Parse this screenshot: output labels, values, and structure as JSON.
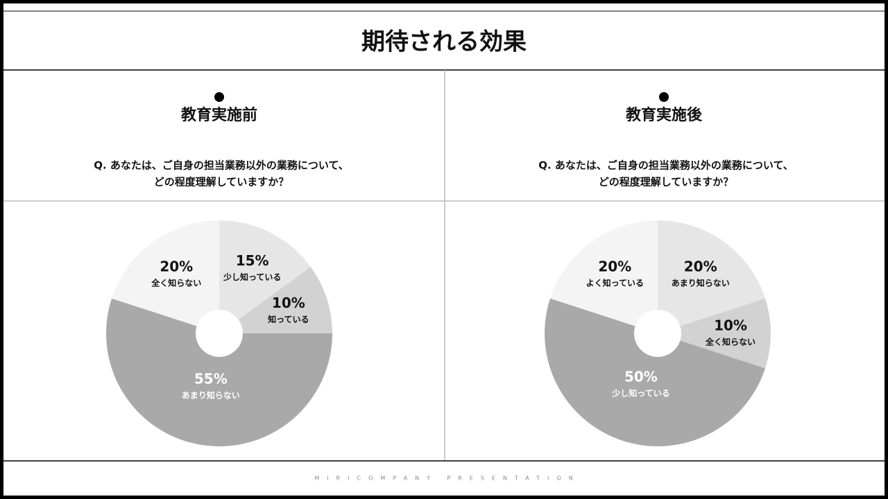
{
  "title": "期待される効果",
  "footer": "MIRICOMPANY PRESENTATION",
  "chart_data": [
    {
      "type": "pie",
      "title": "教育実施前",
      "question": [
        "Q. あなたは、ご自身の担当業務以外の業務について、",
        "どの程度理解していますか？"
      ],
      "categories": [
        "少し知っている",
        "知っている",
        "あまり知らない",
        "全く知らない"
      ],
      "values": [
        15,
        10,
        55,
        20
      ],
      "value_labels": [
        "15%",
        "10%",
        "55%",
        "20%"
      ],
      "colors": [
        "#e6e6e6",
        "#d2d2d2",
        "#a9a9a9",
        "#f4f4f4"
      ]
    },
    {
      "type": "pie",
      "title": "教育実施後",
      "question": [
        "Q. あなたは、ご自身の担当業務以外の業務について、",
        "どの程度理解していますか？"
      ],
      "categories": [
        "あまり知らない",
        "全く知らない",
        "少し知っている",
        "よく知っている"
      ],
      "values": [
        20,
        10,
        50,
        20
      ],
      "value_labels": [
        "20%",
        "10%",
        "50%",
        "20%"
      ],
      "colors": [
        "#e6e6e6",
        "#d2d2d2",
        "#a9a9a9",
        "#f4f4f4"
      ]
    }
  ]
}
